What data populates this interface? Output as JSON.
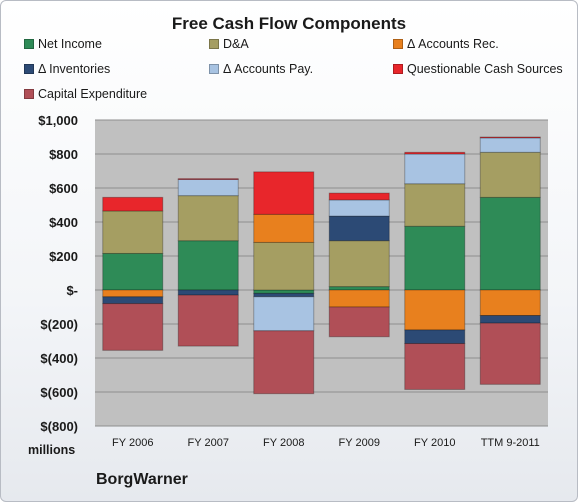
{
  "chart_data": {
    "type": "bar",
    "title": "Free Cash Flow Components",
    "ylabel": "millions",
    "company": "BorgWarner",
    "stacked": true,
    "ylim": [
      -800,
      1000
    ],
    "ytick_values": [
      1000,
      800,
      600,
      400,
      200,
      0,
      -200,
      -400,
      -600,
      -800
    ],
    "ytick_labels": [
      "$1,000",
      "$800",
      "$600",
      "$400",
      "$200",
      "$-",
      "$(200)",
      "$(400)",
      "$(600)",
      "$(800)"
    ],
    "grid": true,
    "legend": "top",
    "categories": [
      "FY 2006",
      "FY 2007",
      "FY 2008",
      "FY 2009",
      "FY 2010",
      "TTM 9-2011"
    ],
    "series": [
      {
        "name": "Net Income",
        "color": "#2e8b57",
        "values": [
          215,
          290,
          -20,
          20,
          375,
          545
        ]
      },
      {
        "name": "D&A",
        "color": "#a59e62",
        "values": [
          250,
          265,
          280,
          270,
          250,
          265
        ]
      },
      {
        "name": "Δ Accounts Rec.",
        "color": "#e8801e",
        "values": [
          -40,
          0,
          165,
          -100,
          -235,
          -150
        ]
      },
      {
        "name": "Δ Inventories",
        "color": "#2c4a75",
        "values": [
          -40,
          -30,
          -20,
          145,
          -80,
          -45
        ]
      },
      {
        "name": "Δ Accounts Pay.",
        "color": "#a8c3e2",
        "values": [
          0,
          95,
          -200,
          95,
          175,
          85
        ]
      },
      {
        "name": "Questionable Cash Sources",
        "color": "#e8262b",
        "values": [
          80,
          5,
          250,
          40,
          10,
          5
        ]
      },
      {
        "name": "Capital Expenditure",
        "color": "#b04f57",
        "values": [
          -275,
          -300,
          -370,
          -175,
          -270,
          -360
        ]
      }
    ]
  }
}
